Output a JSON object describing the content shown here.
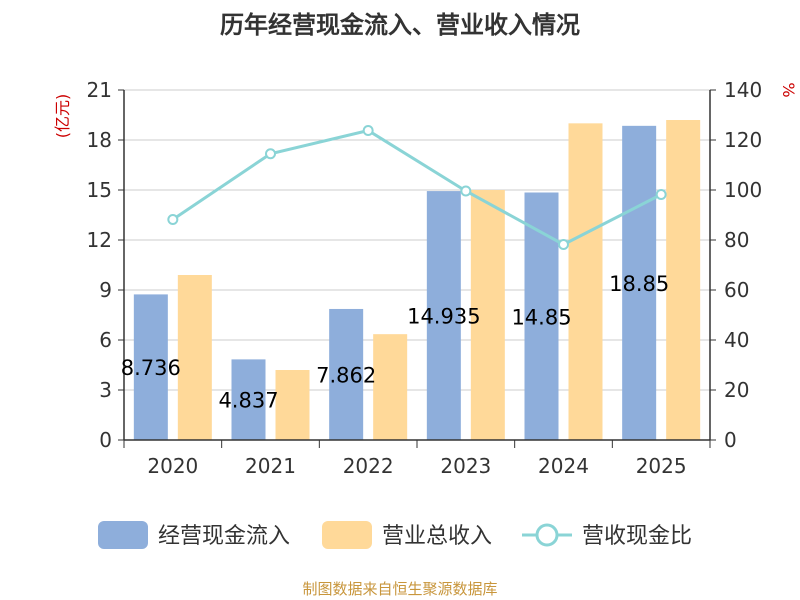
{
  "chart_data": {
    "type": "bar",
    "title": "历年经营现金流入、营业收入情况",
    "categories": [
      "2020",
      "2021",
      "2022",
      "2023",
      "2024",
      "2025"
    ],
    "series": [
      {
        "name": "经营现金流入",
        "type": "bar",
        "axis": "left",
        "color": "#8eaedb",
        "values": [
          8.736,
          4.837,
          7.862,
          14.935,
          14.85,
          18.85
        ],
        "labels": [
          "8.736",
          "4.837",
          "7.862",
          "14.935",
          "14.85",
          "18.85"
        ]
      },
      {
        "name": "营业总收入",
        "type": "bar",
        "axis": "left",
        "color": "#ffd999",
        "values": [
          9.9,
          4.2,
          6.35,
          15.0,
          19.0,
          19.2
        ]
      },
      {
        "name": "营收现金比",
        "type": "line",
        "axis": "right",
        "color": "#8ad4d6",
        "values": [
          88.2,
          114.5,
          123.8,
          99.6,
          78.2,
          98.2
        ]
      }
    ],
    "y_left": {
      "label": "(亿元)",
      "min": 0,
      "max": 21,
      "ticks": [
        0,
        3,
        6,
        9,
        12,
        15,
        18,
        21
      ]
    },
    "y_right": {
      "label": "%",
      "min": 0,
      "max": 140,
      "ticks": [
        0,
        20,
        40,
        60,
        80,
        100,
        120,
        140
      ]
    },
    "grid": true,
    "legend": "bottom",
    "axis_label_color": "#cc0000",
    "source": "制图数据来自恒生聚源数据库",
    "source_color": "#c8963c"
  }
}
